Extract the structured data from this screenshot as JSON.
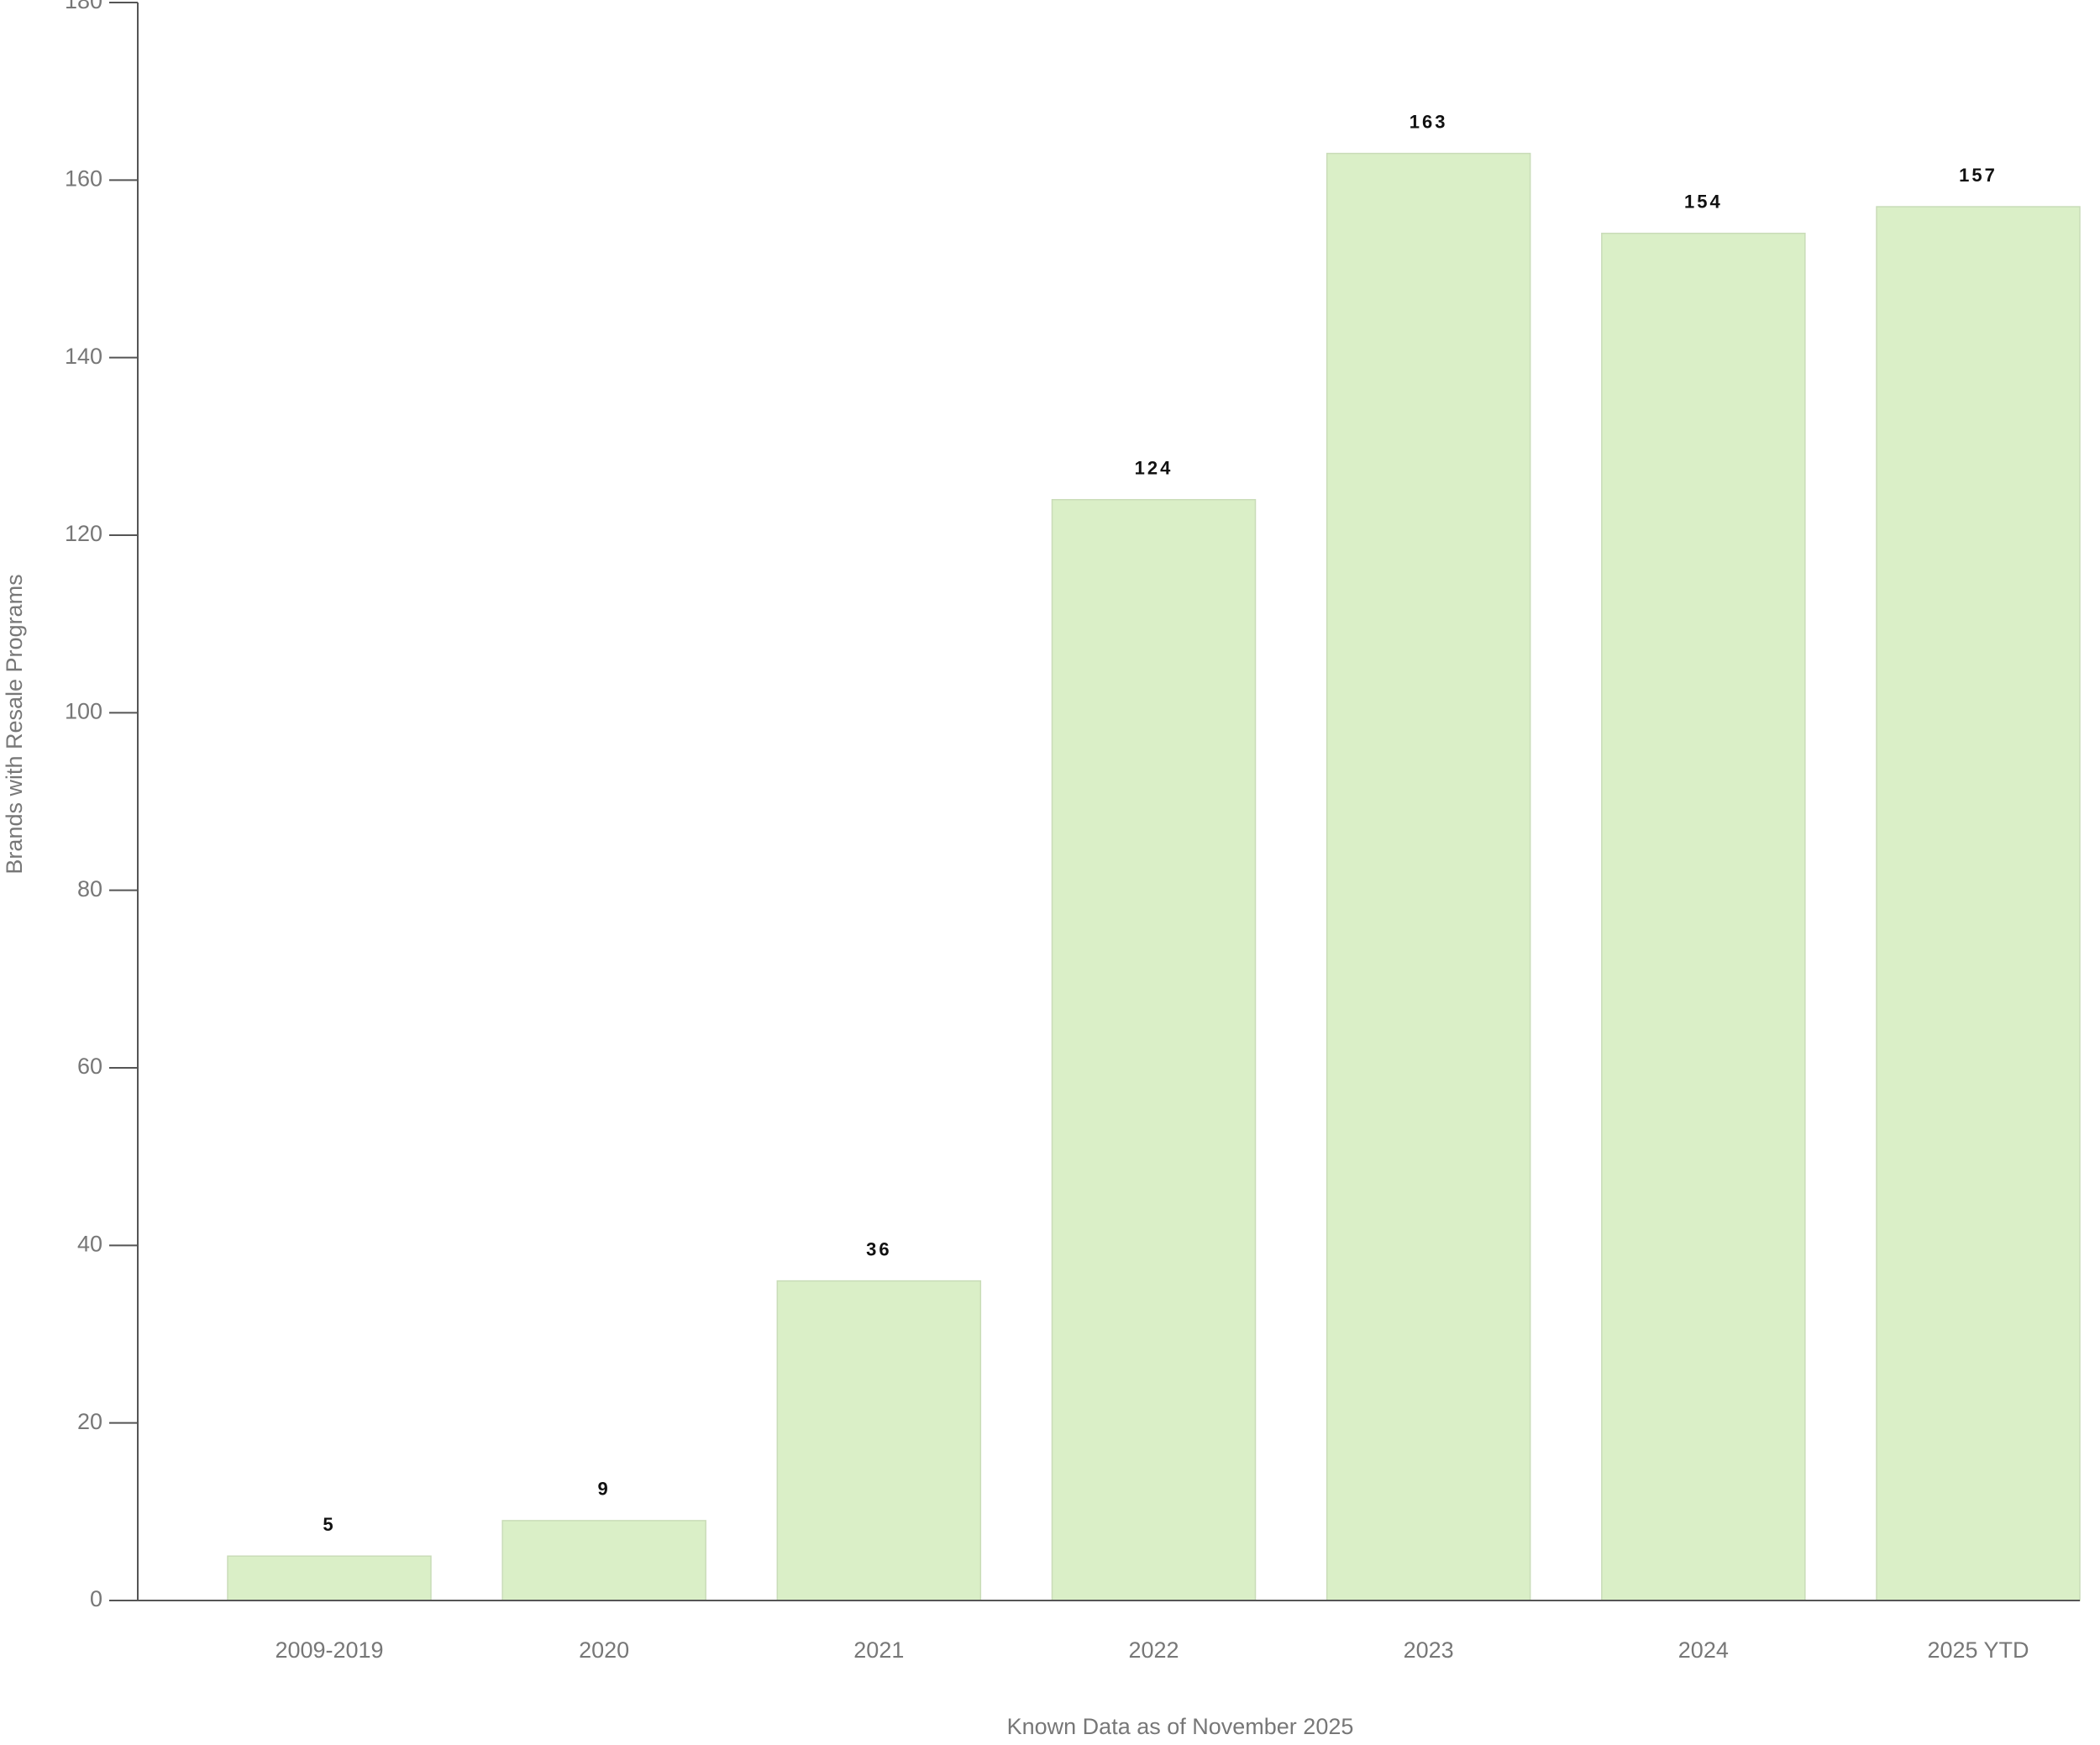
{
  "chart_data": {
    "type": "bar",
    "categories": [
      "2009-2019",
      "2020",
      "2021",
      "2022",
      "2023",
      "2024",
      "2025 YTD"
    ],
    "values": [
      5,
      9,
      36,
      124,
      163,
      154,
      157
    ],
    "color": "#daefc7",
    "ylim": [
      0,
      180
    ],
    "yticks": [
      0,
      20,
      40,
      60,
      80,
      100,
      120,
      140,
      160,
      180
    ],
    "y_label": "Brands with Resale Programs",
    "x_label": "Known Data as of November 2025",
    "grid": false
  }
}
